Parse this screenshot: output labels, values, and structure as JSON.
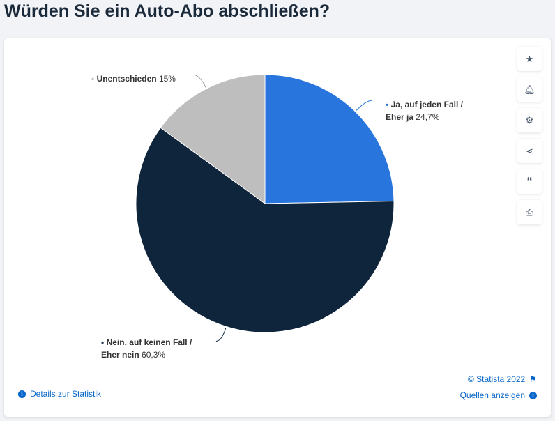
{
  "title": "Würden Sie ein Auto-Abo abschließen?",
  "chart_data": {
    "type": "pie",
    "title": "Würden Sie ein Auto-Abo abschließen?",
    "slices": [
      {
        "label_line1": "Ja, auf jeden Fall /",
        "label_line2": "Eher ja",
        "value": 24.7,
        "value_text": "24,7%",
        "color": "#2876dd"
      },
      {
        "label_line1": "Nein, auf keinen Fall /",
        "label_line2": "Eher nein",
        "value": 60.3,
        "value_text": "60,3%",
        "color": "#0f253c"
      },
      {
        "label_line1": "Unentschieden",
        "label_line2": "",
        "value": 15,
        "value_text": "15%",
        "color": "#bebebe"
      }
    ]
  },
  "toolbar": [
    "star-icon",
    "bell-icon",
    "gear-icon",
    "share-icon",
    "quote-icon",
    "print-icon"
  ],
  "footer": {
    "copyright": "© Statista 2022",
    "details": "Details zur Statistik",
    "sources": "Quellen anzeigen"
  }
}
